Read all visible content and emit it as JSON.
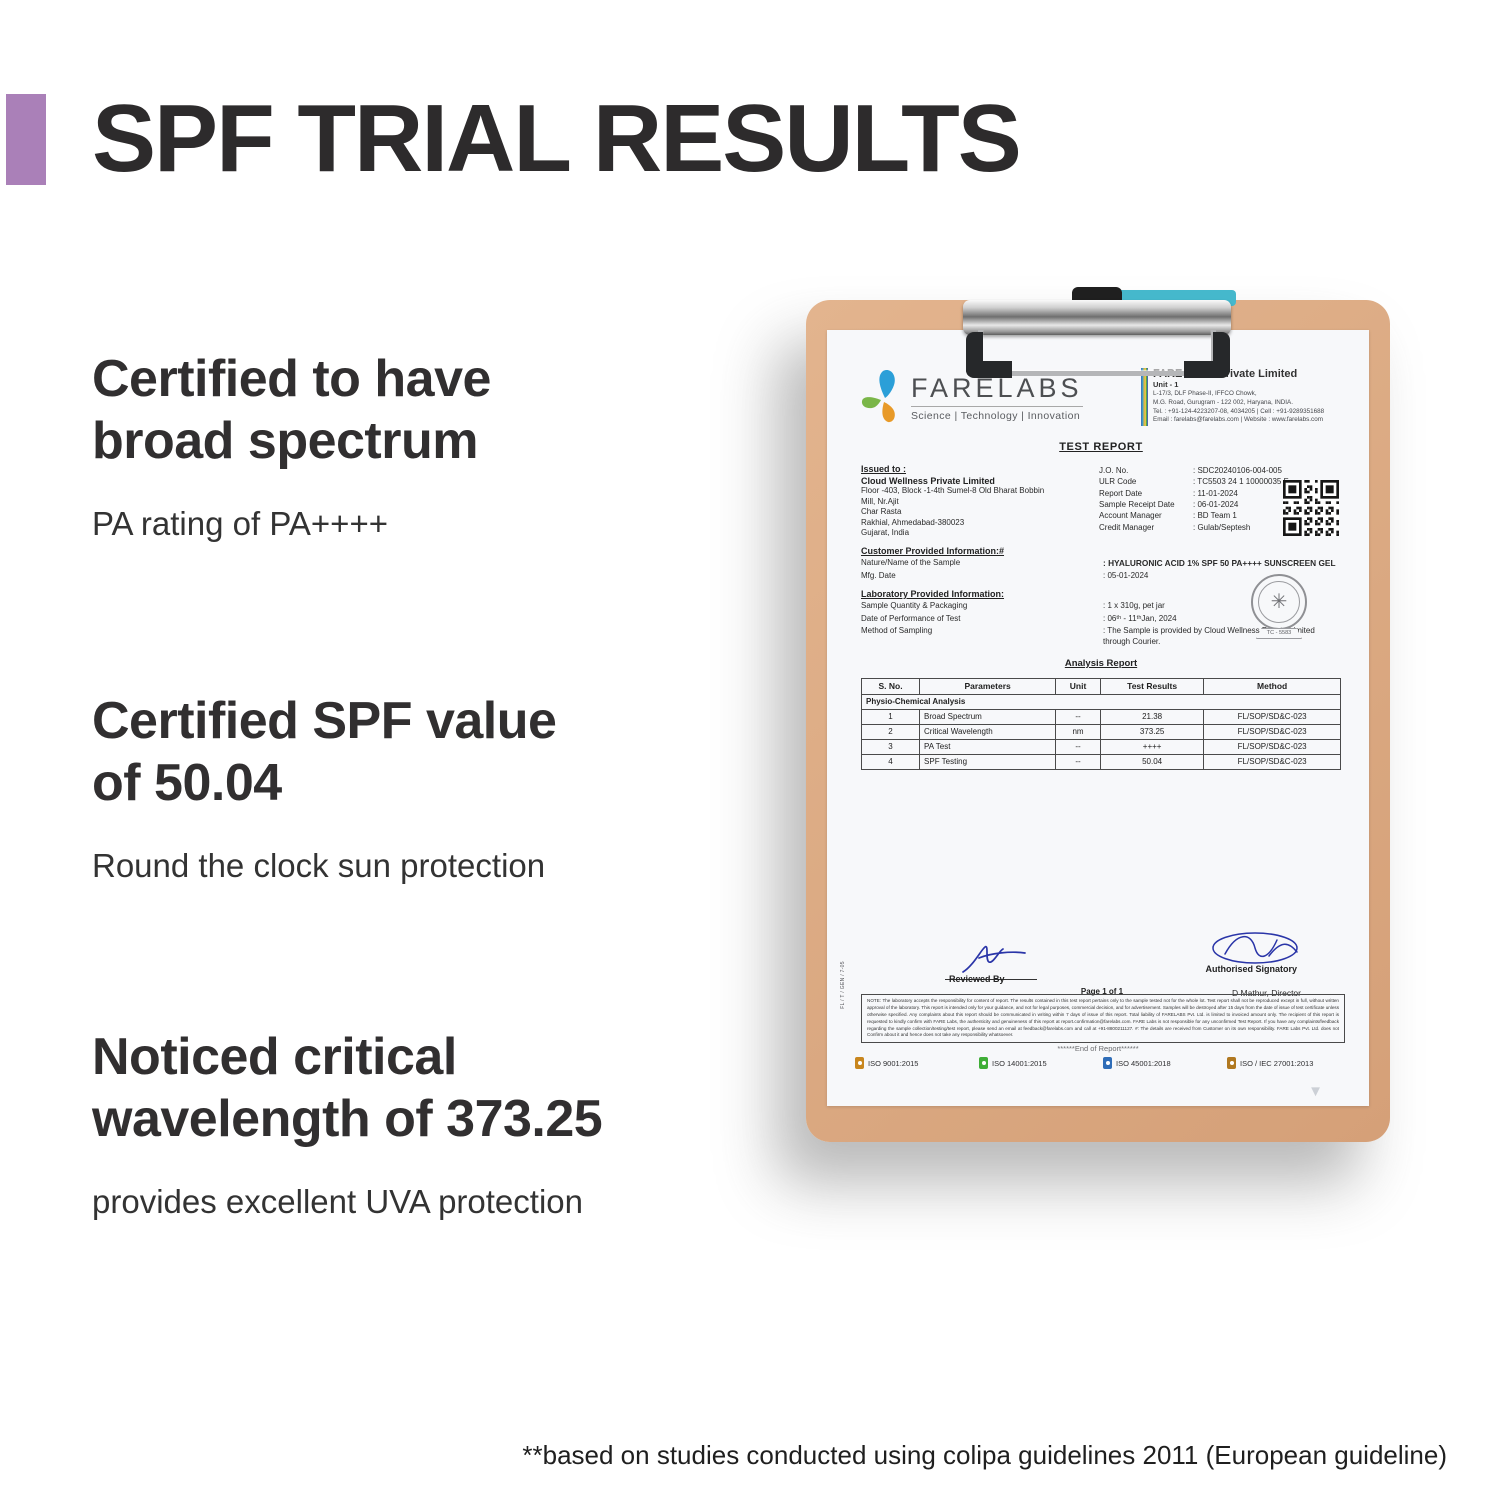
{
  "page": {
    "title": "SPF TRIAL RESULTS",
    "footnote": "**based on studies conducted using colipa guidelines 2011 (European guideline)",
    "accent_color": "#aa80b8"
  },
  "features": [
    {
      "heading_lines": [
        "Certified to have",
        "broad spectrum"
      ],
      "subtext": "PA rating of PA++++"
    },
    {
      "heading_lines": [
        "Certified SPF value",
        "of 50.04"
      ],
      "subtext": "Round the clock sun protection"
    },
    {
      "heading_lines": [
        "Noticed critical",
        "wavelength of 373.25"
      ],
      "subtext": "provides excellent UVA protection"
    }
  ],
  "report": {
    "lab": {
      "logo_text": "FARELABS",
      "tagline": "Science  |  Technology  |  Innovation",
      "company_name": "FARE LABS Private Limited",
      "unit": "Unit - 1",
      "address_lines": [
        "L-17/3, DLF Phase-II, IFFCO Chowk,",
        "M.G. Road, Gurugram - 122 002, Haryana, INDIA.",
        "Tel. : +91-124-4223207-08, 4034205  |  Cell : +91-9289351688",
        "Email : farelabs@farelabs.com  |  Website : www.farelabs.com"
      ]
    },
    "title": "TEST REPORT",
    "issued_to": {
      "label": "Issued to :",
      "name": "Cloud Wellness Private Limited",
      "address_lines": [
        "Floor -403, Block -1-4th Sumel-8 Old Bharat Bobbin",
        "Mill, Nr.Ajit",
        "Char Rasta",
        "Rakhial, Ahmedabad-380023",
        "Gujarat, India"
      ]
    },
    "meta": [
      {
        "label": "J.O. No.",
        "value": ": SDC20240106-004-005"
      },
      {
        "label": "ULR Code",
        "value": ": TC5503 24 1 10000035 F"
      },
      {
        "label": "Report Date",
        "value": ": 11-01-2024"
      },
      {
        "label": "Sample Receipt Date",
        "value": ": 06-01-2024"
      },
      {
        "label": "Account Manager",
        "value": ": BD Team 1"
      },
      {
        "label": "Credit Manager",
        "value": ": Gulab/Septesh"
      }
    ],
    "customer_info": {
      "heading": "Customer Provided Information:#",
      "rows": [
        {
          "label": "Nature/Name of the Sample",
          "value": ": HYALURONIC ACID 1% SPF 50 PA++++ SUNSCREEN GEL",
          "bold": true
        },
        {
          "label": "Mfg. Date",
          "value": ": 05-01-2024",
          "bold": false
        }
      ]
    },
    "lab_info": {
      "heading": "Laboratory Provided Information:",
      "rows": [
        {
          "label": "Sample Quantity & Packaging",
          "value": ": 1 x 310g, pet jar",
          "bold": false
        },
        {
          "label": "Date of Performance of Test",
          "value": ": 06ᵗʰ - 11ᵗʰJan, 2024",
          "bold": false
        },
        {
          "label": "Method of Sampling",
          "value": ": The Sample is provided by Cloud Wellness Private Limited through Courier.",
          "bold": false
        }
      ]
    },
    "seal_text": "TC - 5583",
    "analysis": {
      "heading": "Analysis Report",
      "columns": [
        "S. No.",
        "Parameters",
        "Unit",
        "Test Results",
        "Method"
      ],
      "section_label": "Physio-Chemical Analysis",
      "rows": [
        [
          "1",
          "Broad Spectrum",
          "--",
          "21.38",
          "FL/SOP/SD&C-023"
        ],
        [
          "2",
          "Critical Wavelength",
          "nm",
          "373.25",
          "FL/SOP/SD&C-023"
        ],
        [
          "3",
          "PA Test",
          "--",
          "++++",
          "FL/SOP/SD&C-023"
        ],
        [
          "4",
          "SPF Testing",
          "--",
          "50.04",
          "FL/SOP/SD&C-023"
        ]
      ]
    },
    "signatures": {
      "reviewed_by": "Reviewed By",
      "page_info": "Page 1 of 1",
      "authorised": "Authorised Signatory",
      "signatory_name": "D Mathur, Director"
    },
    "note": "NOTE: The laboratory accepts the responsibility for content of report. The results contained in this test report pertains only to the sample tested not for the whole lot. Test report shall not be reproduced except in full, without written approval of the laboratory. This report is intended only for your guidance, and not for legal purposes, commercial decision, and for advertisement. Samples will be destroyed after 15 days from the date of issue of test certificate unless otherwise specified. Any complaints about this report should be communicated in writing within 7 days of issue of this report. Total liability of FARELABS Pvt. Ltd. is limited to invoiced amount only. The recipient of this report is requested to kindly confirm with FARE Labs, the authenticity and genuineness of this report at report.confirmation@farelabs.com. FARE Labs is not responsible for any unconfirmed Test Report. If you have any complaints/feedback regarding the sample collection/testing/test report, please send an email at feedback@farelabs.com and call at +91-8800211127. #: The details are received from Customer on its own responsibility. FARE Labs Pvt. Ltd. does not Confirm about it and hence does not take any responsibility whatsoever.",
    "end_text": "******End of Report******",
    "side_code": "FL / T / GEN / 7-05",
    "iso_badges": [
      {
        "label": "ISO 9001:2015",
        "color": "#c8861e"
      },
      {
        "label": "ISO 14001:2015",
        "color": "#3fae37"
      },
      {
        "label": "ISO 45001:2018",
        "color": "#2f6db8"
      },
      {
        "label": "ISO / IEC 27001:2013",
        "color": "#b07820"
      }
    ]
  }
}
